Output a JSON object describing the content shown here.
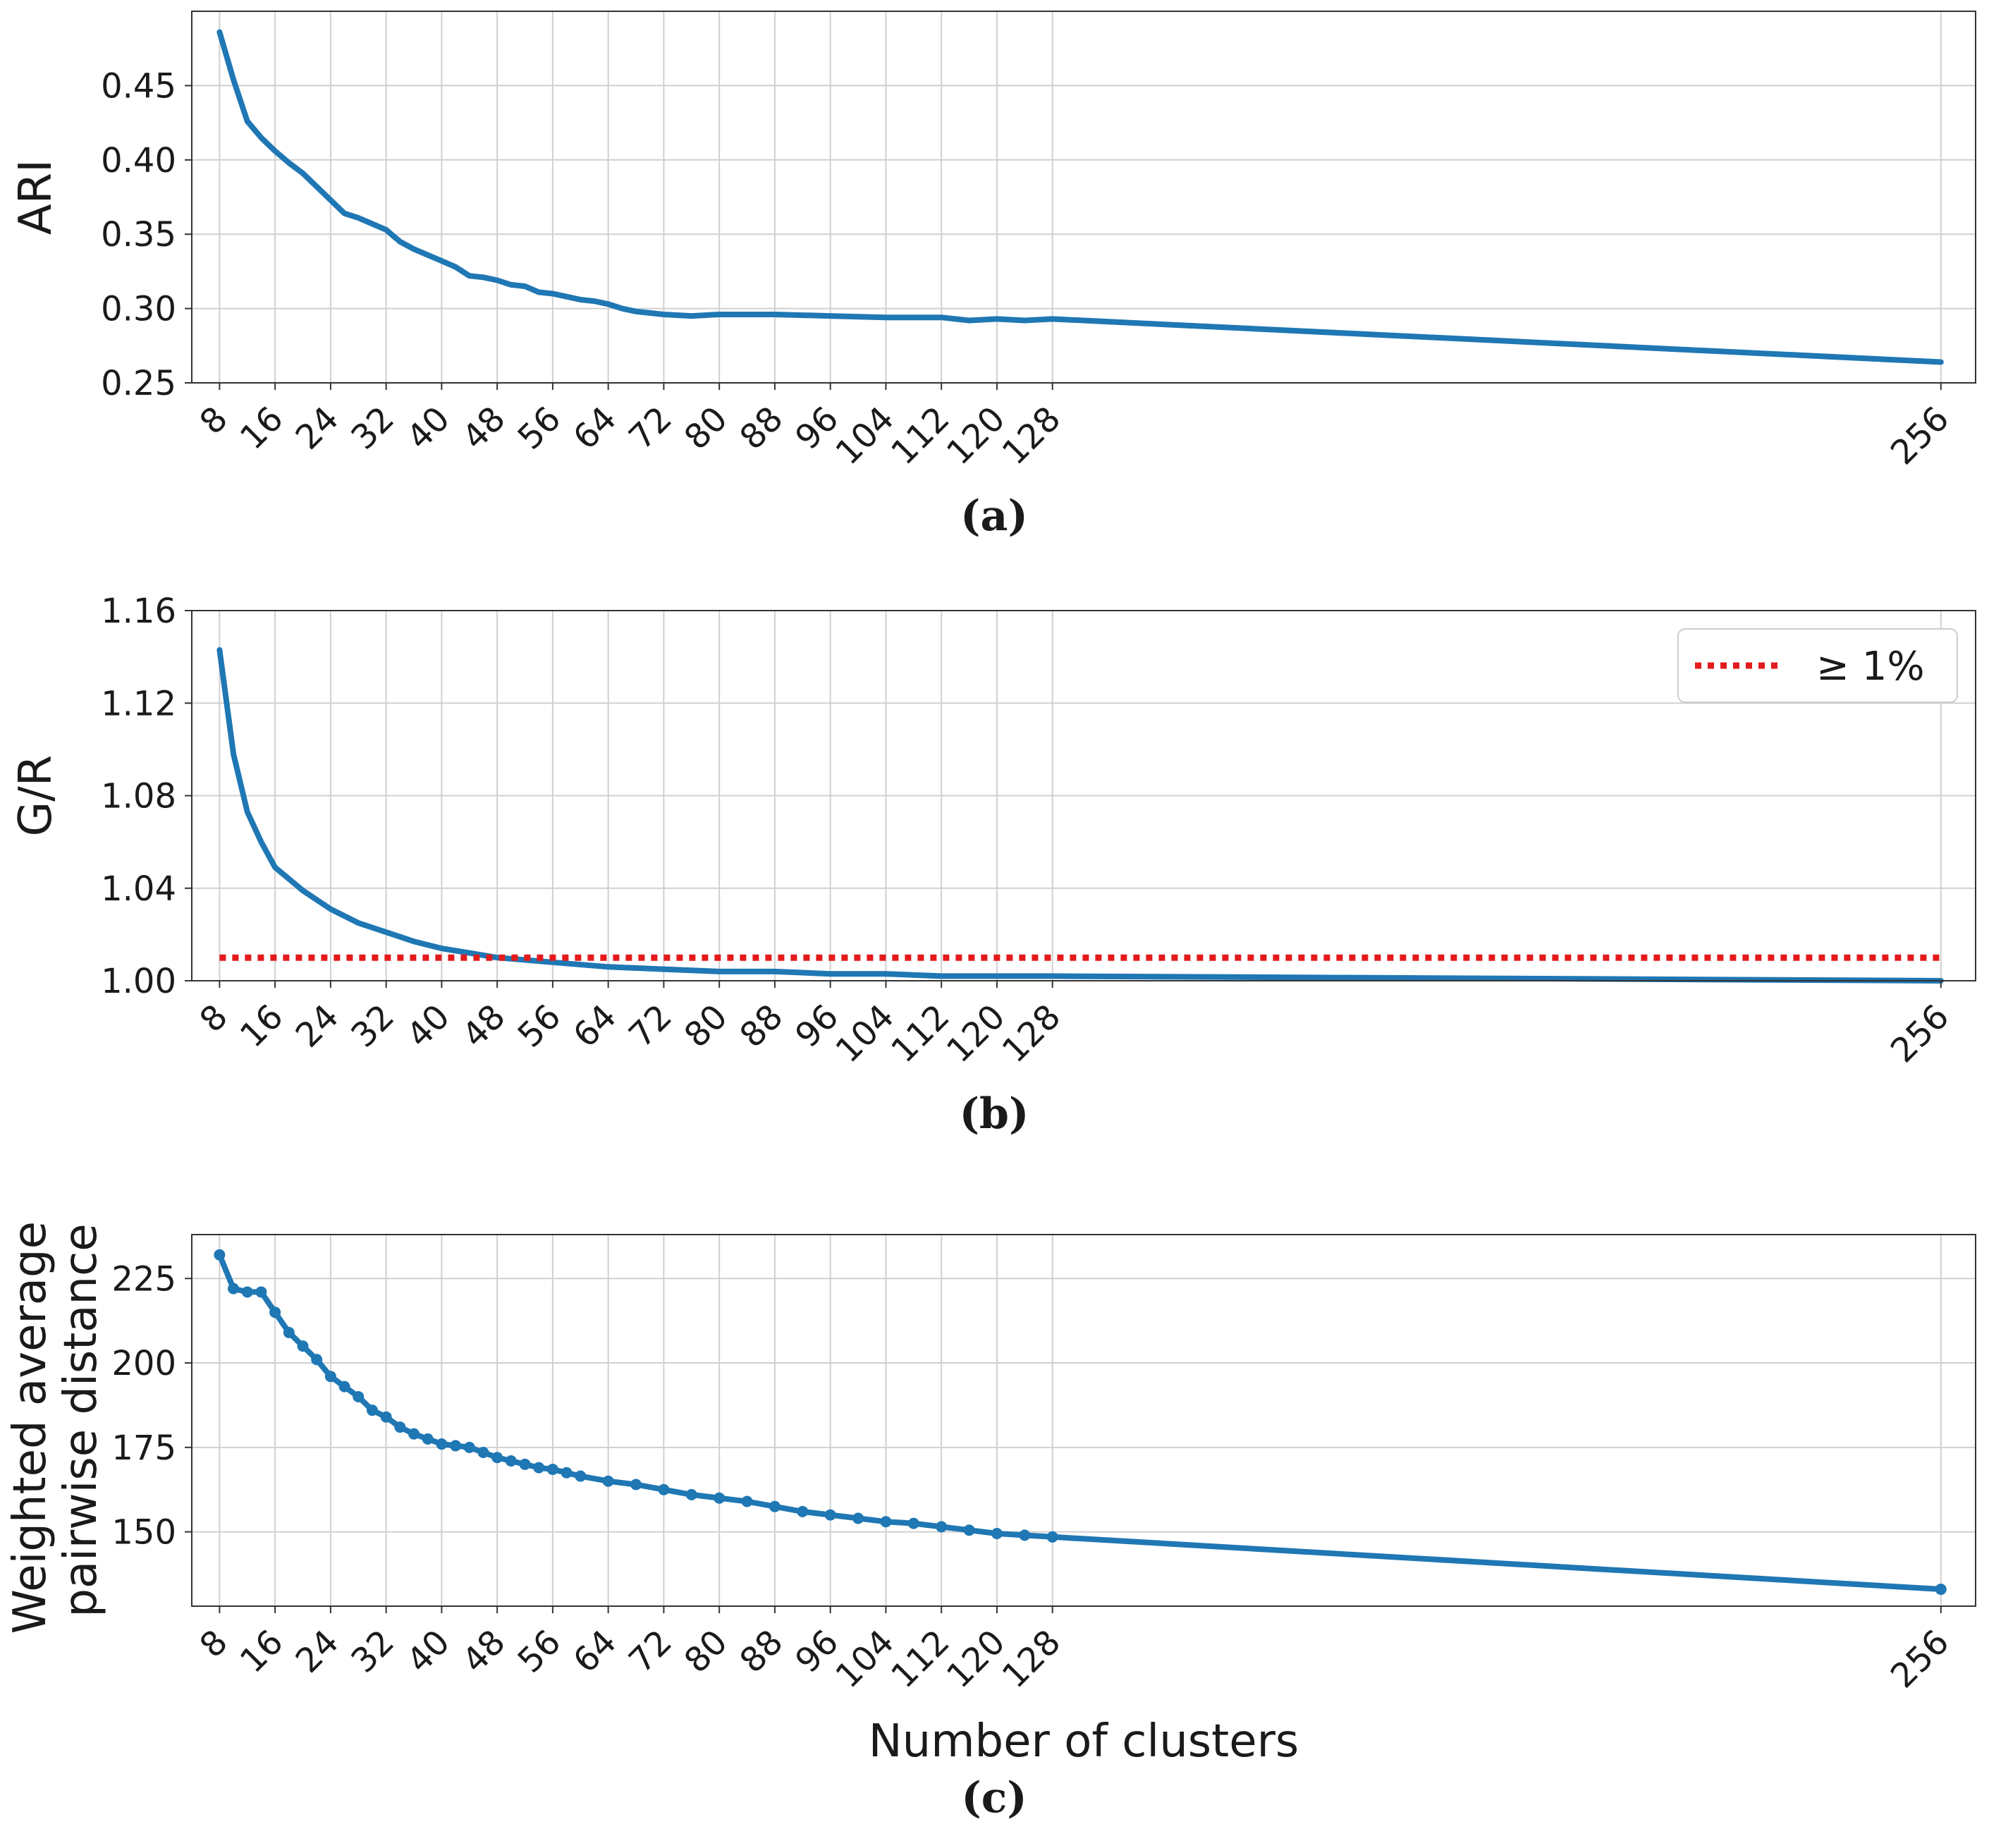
{
  "chart_data": [
    {
      "id": "a",
      "type": "line",
      "caption": "(a)",
      "ylabel": "ARI",
      "xlabel": "",
      "xlim": [
        4,
        261
      ],
      "ylim": [
        0.25,
        0.5
      ],
      "yticks": [
        "0.25",
        "0.30",
        "0.35",
        "0.40",
        "0.45"
      ],
      "ytick_values": [
        0.25,
        0.3,
        0.35,
        0.4,
        0.45
      ],
      "xticks": [
        "8",
        "16",
        "24",
        "32",
        "40",
        "48",
        "56",
        "64",
        "72",
        "80",
        "88",
        "96",
        "104",
        "112",
        "120",
        "128",
        "256"
      ],
      "xtick_values": [
        8,
        16,
        24,
        32,
        40,
        48,
        56,
        64,
        72,
        80,
        88,
        96,
        104,
        112,
        120,
        128,
        256
      ],
      "grid": true,
      "markers": false,
      "series": [
        {
          "name": "ARI",
          "color": "#1f77b4",
          "x": [
            8,
            10,
            12,
            14,
            16,
            18,
            20,
            22,
            24,
            26,
            28,
            30,
            32,
            34,
            36,
            38,
            40,
            42,
            44,
            46,
            48,
            50,
            52,
            54,
            56,
            58,
            60,
            62,
            64,
            66,
            68,
            70,
            72,
            76,
            80,
            88,
            96,
            104,
            112,
            116,
            120,
            124,
            128,
            256
          ],
          "y": [
            0.486,
            0.454,
            0.426,
            0.415,
            0.406,
            0.398,
            0.391,
            0.382,
            0.373,
            0.364,
            0.361,
            0.357,
            0.353,
            0.345,
            0.34,
            0.336,
            0.332,
            0.328,
            0.322,
            0.321,
            0.319,
            0.316,
            0.315,
            0.311,
            0.31,
            0.308,
            0.306,
            0.305,
            0.303,
            0.3,
            0.298,
            0.297,
            0.296,
            0.295,
            0.296,
            0.296,
            0.295,
            0.294,
            0.294,
            0.292,
            0.293,
            0.292,
            0.293,
            0.264
          ]
        }
      ]
    },
    {
      "id": "b",
      "type": "line",
      "caption": "(b)",
      "ylabel": "G/R",
      "xlabel": "",
      "xlim": [
        4,
        261
      ],
      "ylim": [
        1.0,
        1.16
      ],
      "yticks": [
        "1.00",
        "1.04",
        "1.08",
        "1.12",
        "1.16"
      ],
      "ytick_values": [
        1.0,
        1.04,
        1.08,
        1.12,
        1.16
      ],
      "xticks": [
        "8",
        "16",
        "24",
        "32",
        "40",
        "48",
        "56",
        "64",
        "72",
        "80",
        "88",
        "96",
        "104",
        "112",
        "120",
        "128",
        "256"
      ],
      "xtick_values": [
        8,
        16,
        24,
        32,
        40,
        48,
        56,
        64,
        72,
        80,
        88,
        96,
        104,
        112,
        120,
        128,
        256
      ],
      "grid": true,
      "markers": false,
      "legend": {
        "position": "top-right",
        "label": "≥ 1%"
      },
      "series": [
        {
          "name": "G/R",
          "color": "#1f77b4",
          "x": [
            8,
            10,
            12,
            14,
            16,
            18,
            20,
            22,
            24,
            28,
            32,
            36,
            40,
            44,
            48,
            56,
            64,
            72,
            80,
            88,
            96,
            104,
            112,
            120,
            128,
            256
          ],
          "y": [
            1.143,
            1.098,
            1.073,
            1.06,
            1.049,
            1.044,
            1.039,
            1.035,
            1.031,
            1.025,
            1.021,
            1.017,
            1.014,
            1.012,
            1.01,
            1.008,
            1.006,
            1.005,
            1.004,
            1.004,
            1.003,
            1.003,
            1.002,
            1.002,
            1.002,
            1.0
          ]
        },
        {
          "name": "≥ 1%",
          "color": "#e31a1c",
          "style": "dotted",
          "x": [
            8,
            256
          ],
          "y": [
            1.01,
            1.01
          ]
        }
      ]
    },
    {
      "id": "c",
      "type": "line",
      "caption": "(c)",
      "ylabel": "Weighted average pairwise distance",
      "ylabel_lines": [
        "Weighted average",
        "pairwise distance"
      ],
      "xlabel": "Number of clusters",
      "xlim": [
        4,
        261
      ],
      "ylim": [
        128,
        238
      ],
      "yticks": [
        "150",
        "175",
        "200",
        "225"
      ],
      "ytick_values": [
        150,
        175,
        200,
        225
      ],
      "xticks": [
        "8",
        "16",
        "24",
        "32",
        "40",
        "48",
        "56",
        "64",
        "72",
        "80",
        "88",
        "96",
        "104",
        "112",
        "120",
        "128",
        "256"
      ],
      "xtick_values": [
        8,
        16,
        24,
        32,
        40,
        48,
        56,
        64,
        72,
        80,
        88,
        96,
        104,
        112,
        120,
        128,
        256
      ],
      "grid": true,
      "markers": true,
      "series": [
        {
          "name": "Weighted average pairwise distance",
          "color": "#1f77b4",
          "x": [
            8,
            10,
            12,
            14,
            16,
            18,
            20,
            22,
            24,
            26,
            28,
            30,
            32,
            34,
            36,
            38,
            40,
            42,
            44,
            46,
            48,
            50,
            52,
            54,
            56,
            58,
            60,
            64,
            68,
            72,
            76,
            80,
            84,
            88,
            92,
            96,
            100,
            104,
            108,
            112,
            116,
            120,
            124,
            128,
            256
          ],
          "y": [
            232,
            222,
            221,
            221,
            215,
            209,
            205,
            201,
            196,
            193,
            190,
            186,
            184,
            181,
            179,
            177.5,
            176,
            175.5,
            175,
            173.5,
            172,
            171,
            170,
            169,
            168.5,
            167.5,
            166.5,
            165,
            164,
            162.5,
            161,
            160,
            159,
            157.5,
            156,
            155,
            154,
            153,
            152.5,
            151.5,
            150.5,
            149.5,
            149,
            148.5,
            133
          ]
        }
      ]
    }
  ]
}
